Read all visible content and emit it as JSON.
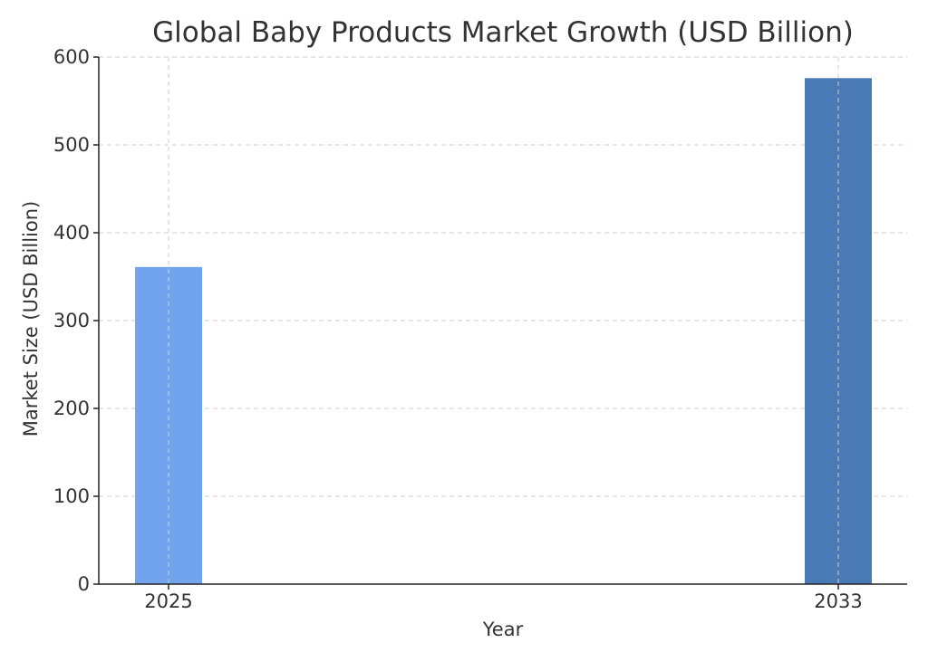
{
  "chart_data": {
    "type": "bar",
    "title": "Global Baby Products Market Growth (USD Billion)",
    "xlabel": "Year",
    "ylabel": "Market Size (USD Billion)",
    "categories": [
      "2025",
      "2033"
    ],
    "values": [
      361,
      576
    ],
    "bar_colors": [
      "#71a3ef",
      "#4a7ab5"
    ],
    "ylim": [
      0,
      600
    ],
    "yticks": [
      0,
      100,
      200,
      300,
      400,
      500,
      600
    ],
    "grid": true,
    "legend": "none"
  }
}
